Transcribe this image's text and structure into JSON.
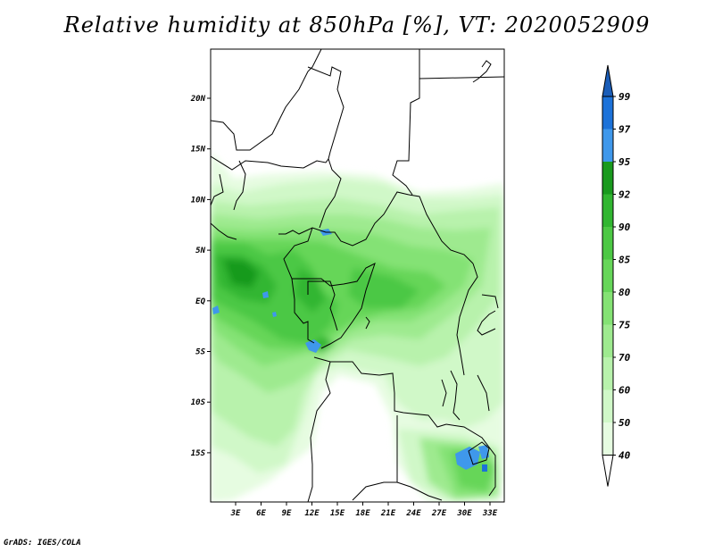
{
  "title": "Relative humidity at 850hPa [%], VT: 2020052909",
  "credit": "GrADS: IGES/COLA",
  "map": {
    "lat_labels": [
      "20N",
      "15N",
      "10N",
      "5N",
      "EQ",
      "5S",
      "10S",
      "15S"
    ],
    "lon_labels": [
      "3E",
      "6E",
      "9E",
      "12E",
      "15E",
      "18E",
      "21E",
      "24E",
      "27E",
      "30E",
      "33E"
    ]
  },
  "colorbar": {
    "levels": [
      "40",
      "50",
      "60",
      "70",
      "75",
      "80",
      "85",
      "90",
      "92",
      "95",
      "97",
      "99"
    ],
    "colors": [
      "#ffffff",
      "#e6fce1",
      "#d0f8c8",
      "#b8f2ac",
      "#9eea8f",
      "#84e274",
      "#66d659",
      "#4cc844",
      "#31b631",
      "#199a1e",
      "#3f98eb",
      "#1c72d9",
      "#1a5db8"
    ]
  }
}
